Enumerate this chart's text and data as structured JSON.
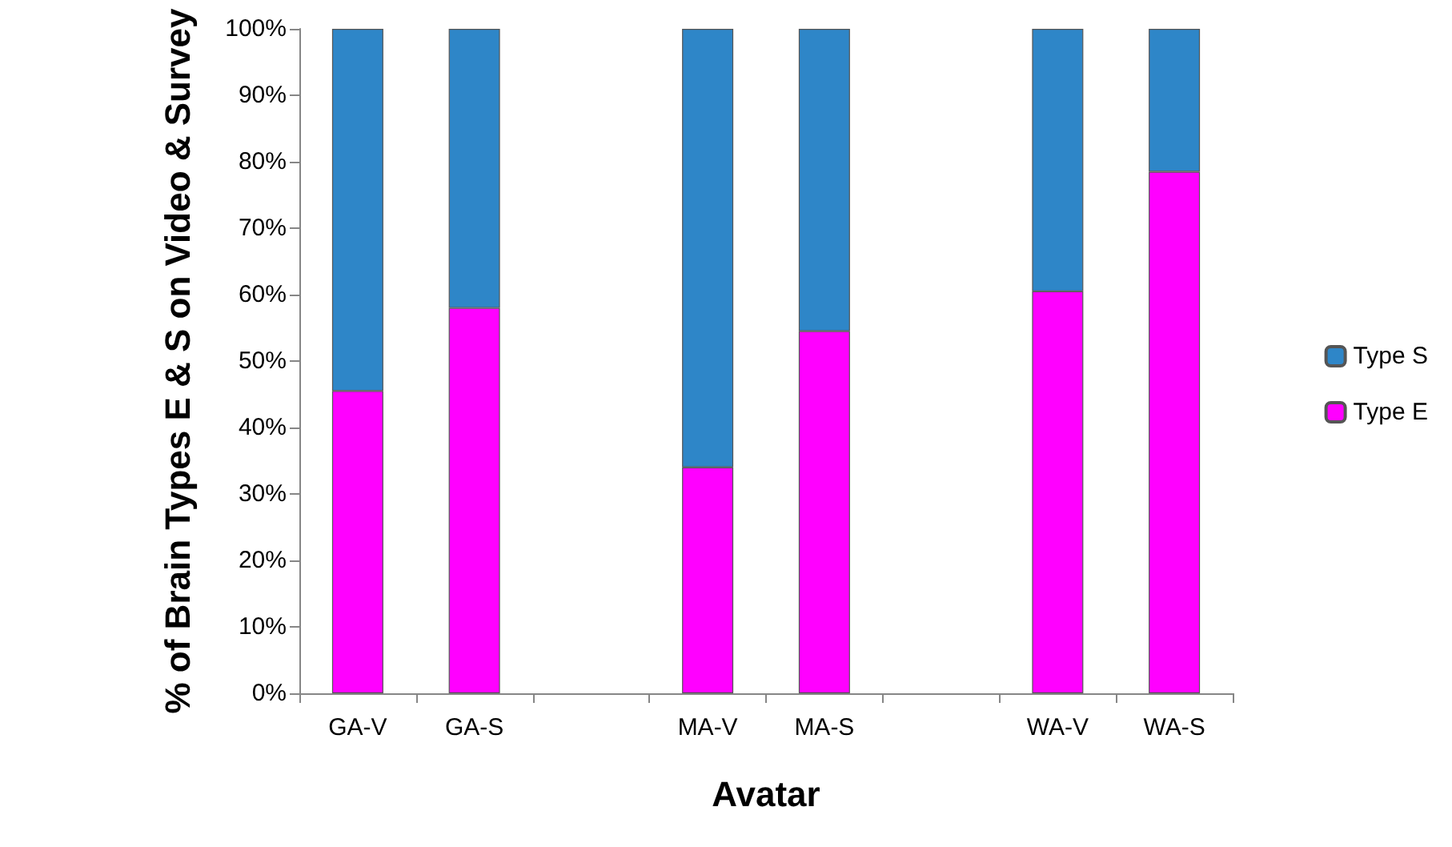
{
  "chart_data": {
    "type": "bar",
    "stacked": true,
    "xlabel": "Avatar",
    "ylabel": "% of Brain Types E & S on Video & Survey",
    "categories": [
      "GA-V",
      "GA-S",
      null,
      "MA-V",
      "MA-S",
      null,
      "WA-V",
      "WA-S"
    ],
    "series": [
      {
        "name": "Type E",
        "color": "#ff00ff",
        "values": [
          45.5,
          58,
          null,
          34,
          54.5,
          null,
          60.5,
          78.5
        ]
      },
      {
        "name": "Type S",
        "color": "#2e86c8",
        "values": [
          54.5,
          42,
          null,
          66,
          45.5,
          null,
          39.5,
          21.5
        ]
      }
    ],
    "ylim": [
      0,
      100
    ],
    "yticks": [
      {
        "value": 0,
        "label": "0%"
      },
      {
        "value": 10,
        "label": "10%"
      },
      {
        "value": 20,
        "label": "20%"
      },
      {
        "value": 30,
        "label": "30%"
      },
      {
        "value": 40,
        "label": "40%"
      },
      {
        "value": 50,
        "label": "50%"
      },
      {
        "value": 60,
        "label": "60%"
      },
      {
        "value": 70,
        "label": "70%"
      },
      {
        "value": 80,
        "label": "80%"
      },
      {
        "value": 90,
        "label": "90%"
      },
      {
        "value": 100,
        "label": "100%"
      }
    ],
    "grid": false,
    "legend": "right"
  }
}
